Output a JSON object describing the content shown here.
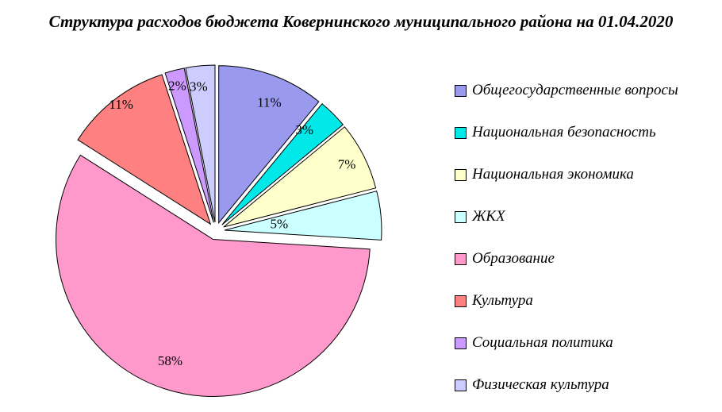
{
  "page": {
    "background_color": "#FFFFFF",
    "text_color": "#000000"
  },
  "chart_data": {
    "type": "pie",
    "style": "exploded",
    "title": "Структура расходов бюджета Ковернинского муниципального района на 01.04.2020",
    "legend_position": "right",
    "total": 100,
    "slices": [
      {
        "name": "Общегосударственные вопросы",
        "value": 11,
        "label": "11%",
        "color": "#9999EE",
        "label_r_frac": 0.83,
        "label_angle_offset_deg": 3
      },
      {
        "name": "Национальная безопасность",
        "value": 3,
        "label": "3%",
        "color": "#00E8E8",
        "label_r_frac": 0.8,
        "label_angle_offset_deg": -4
      },
      {
        "name": "Национальная экономика",
        "value": 7,
        "label": "7%",
        "color": "#FFFFCC",
        "label_r_frac": 0.88,
        "label_angle_offset_deg": 0
      },
      {
        "name": "ЖКХ",
        "value": 5,
        "label": "5%",
        "color": "#CCFFFF",
        "label_r_frac": 0.35,
        "label_angle_offset_deg": -1
      },
      {
        "name": "Образование",
        "value": 58,
        "label": "58%",
        "color": "#FF99CC",
        "label_r_frac": 0.82,
        "label_angle_offset_deg": 1.5
      },
      {
        "name": "Культура",
        "value": 11,
        "label": "11%",
        "color": "#FF8080",
        "label_r_frac": 0.95,
        "label_angle_offset_deg": 1
      },
      {
        "name": "Социальная политика",
        "value": 2,
        "label": "2%",
        "color": "#CC99FF",
        "label_r_frac": 0.9,
        "label_angle_offset_deg": -0.5
      },
      {
        "name": "Физическая культура",
        "value": 3,
        "label": "3%",
        "color": "#CCCCFF",
        "label_r_frac": 0.87,
        "label_angle_offset_deg": -1.5
      }
    ]
  }
}
